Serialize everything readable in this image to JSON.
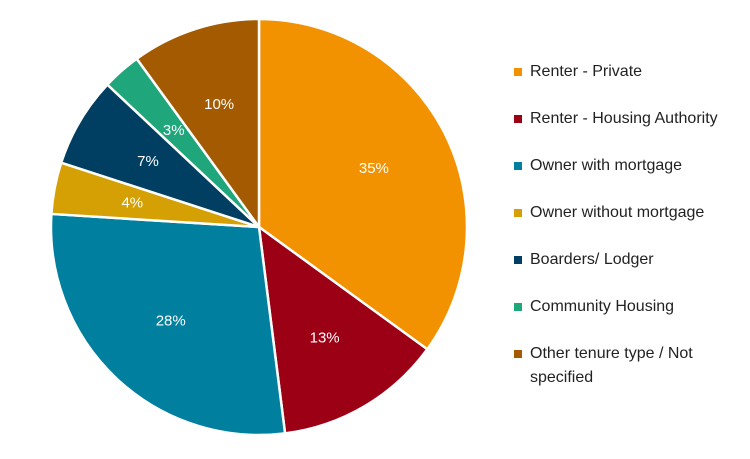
{
  "chart_data": {
    "type": "pie",
    "title": "",
    "start_angle_deg": 0,
    "legend_position": "right",
    "slices": [
      {
        "label": "Renter - Private",
        "value": 35,
        "display": "35%",
        "color": "#F39200"
      },
      {
        "label": "Renter - Housing Authority",
        "value": 13,
        "display": "13%",
        "color": "#9B0015"
      },
      {
        "label": "Owner with mortgage",
        "value": 28,
        "display": "28%",
        "color": "#00809E"
      },
      {
        "label": "Owner without mortgage",
        "value": 4,
        "display": "4%",
        "color": "#D4A004"
      },
      {
        "label": "Boarders/ Lodger",
        "value": 7,
        "display": "7%",
        "color": "#003F61"
      },
      {
        "label": "Community Housing",
        "value": 3,
        "display": "3%",
        "color": "#1FA67A"
      },
      {
        "label": "Other tenure type / Not specified",
        "value": 10,
        "display": "10%",
        "color": "#A35A00"
      }
    ]
  }
}
